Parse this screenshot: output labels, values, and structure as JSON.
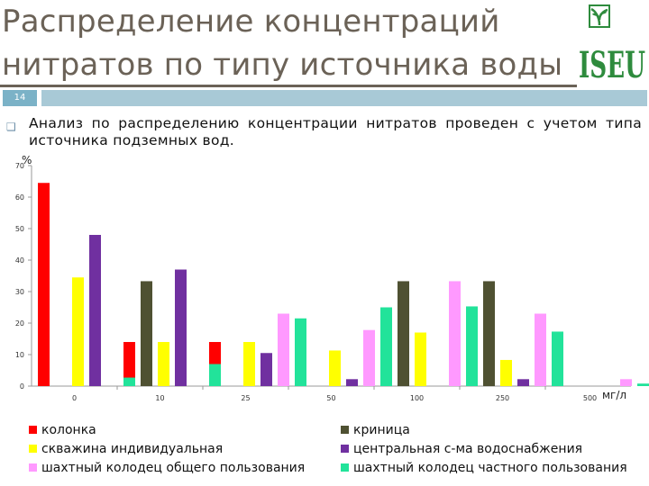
{
  "slide": {
    "title": "Распределение концентраций нитратов по типу источника воды",
    "slide_number": "14",
    "logo_text": "ISEU",
    "bullet": "Анализ по распределению концентрации нитратов проведен с учетом типа источника подземных вод."
  },
  "colors": {
    "title": "#6b6257",
    "band": "#a8c9d6",
    "badge": "#7bb2c7"
  },
  "chart_data": {
    "type": "bar",
    "y_unit_label": "%",
    "x_unit_label": "мг/л",
    "ylim": [
      0,
      70
    ],
    "yticks": [
      "0",
      "10",
      "20",
      "30",
      "40",
      "50",
      "60",
      "70"
    ],
    "categories": [
      "0",
      "10",
      "25",
      "50",
      "100",
      "250",
      "500"
    ],
    "grid": false,
    "legend_position": "bottom",
    "series": [
      {
        "name": "колонка",
        "color": "#ff0000",
        "values": [
          64.5,
          14,
          14,
          7,
          0,
          0,
          0
        ]
      },
      {
        "name": "криница",
        "color": "#4f5132",
        "values": [
          0,
          33.3,
          0,
          0,
          33.3,
          33.3,
          0
        ]
      },
      {
        "name": "скважина индивидуальная",
        "color": "#ffff00",
        "values": [
          34.5,
          14,
          14,
          11.3,
          17,
          8.3,
          0
        ]
      },
      {
        "name": "центральная с-ма водоснабжения",
        "color": "#7030a0",
        "values": [
          48,
          37,
          10.5,
          2.2,
          0,
          2.2,
          0
        ]
      },
      {
        "name": "шахтный колодец общего пользования",
        "color": "#ff99ff",
        "values": [
          0,
          0,
          23,
          17.8,
          33.3,
          23,
          2.2
        ]
      },
      {
        "name": "шахтный колодец частного пользования",
        "color": "#22e39a",
        "values": [
          2.7,
          7,
          21.5,
          25,
          25.3,
          17.3,
          0.8
        ]
      }
    ]
  }
}
